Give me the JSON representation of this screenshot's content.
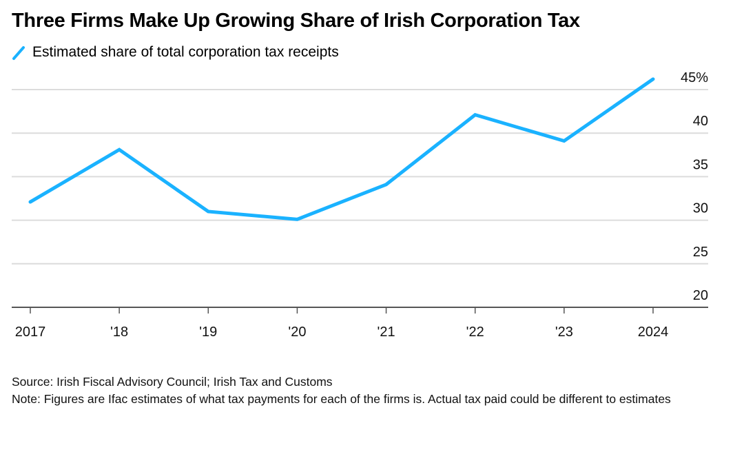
{
  "header": {
    "title": "Three Firms Make Up Growing Share of Irish Corporation Tax"
  },
  "legend": {
    "items": [
      {
        "label": "Estimated share of total corporation tax receipts",
        "color": "#1ab2ff"
      }
    ]
  },
  "chart_data": {
    "type": "line",
    "title": "Three Firms Make Up Growing Share of Irish Corporation Tax",
    "xlabel": "",
    "ylabel": "",
    "categories": [
      "2017",
      "'18",
      "'19",
      "'20",
      "'21",
      "'22",
      "'23",
      "2024"
    ],
    "series": [
      {
        "name": "Estimated share of total corporation tax receipts",
        "color": "#1ab2ff",
        "values": [
          32.1,
          38.1,
          31.0,
          30.1,
          34.1,
          42.1,
          39.1,
          46.2
        ]
      }
    ],
    "ylim": [
      20,
      45
    ],
    "yticks": [
      20,
      25,
      30,
      35,
      40,
      45
    ],
    "ytick_labels": [
      "20",
      "25",
      "30",
      "35",
      "40",
      "45%"
    ],
    "yaxis_position": "right",
    "grid": true,
    "legend_position": "top-left"
  },
  "footer": {
    "source": "Source: Irish Fiscal Advisory Council; Irish Tax and Customs",
    "note": "Note: Figures are Ifac estimates of what tax payments for each of the firms is. Actual tax paid could be different to estimates"
  }
}
